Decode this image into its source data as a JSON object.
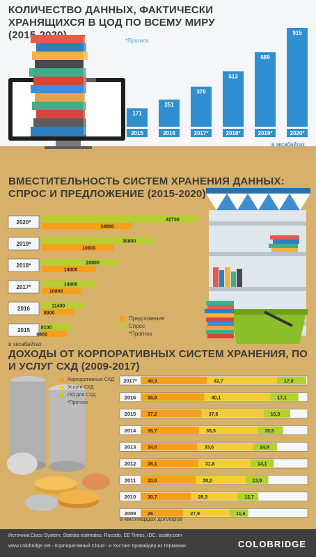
{
  "section1": {
    "title": "КОЛИЧЕСТВО ДАННЫХ, ФАКТИЧЕСКИ ХРАНЯЩИХСЯ В ЦОД ПО ВСЕМУ МИРУ (2015-2020)",
    "note": "*Прогноз",
    "unit": "в эксабайтах"
  },
  "section2": {
    "title": "ВМЕСТИТЕЛЬНОСТЬ СИСТЕМ ХРАНЕНИЯ ДАННЫХ: СПРОС И ПРЕДЛОЖЕНИЕ (2015-2020)",
    "legend": [
      "Предложение",
      "Спрос",
      "*Прогноз"
    ],
    "unit": "в эксабайтах"
  },
  "section3": {
    "title": "ДОХОДЫ ОТ КОРПОРАТИВНЫХ СИСТЕМ ХРАНЕНИЯ, ПО И УСЛУГ СХД (2009-2017)",
    "legend": [
      "Корпоративные СХД",
      "Услуги СХД",
      "ПО для СХД",
      "*Прогноз"
    ],
    "unit": "в миллиардах долларов"
  },
  "footer": {
    "source": "Источник:Cisco System, Statista estimates, Rocodo, EE Times, IDC, scality.com",
    "website": "www.colobridge.net - Корпоративный Cloud - и Хостинг провайдер из Германии",
    "logo": "COLOBRIDGE"
  },
  "colors": {
    "blue": "#2f8fd0",
    "orange": "#f6a01a",
    "green": "#b5cf2e",
    "yellow": "#f4cd34"
  },
  "chart_data": [
    {
      "type": "bar",
      "categories": [
        "2015",
        "2016",
        "2017*",
        "2018*",
        "2019*",
        "2020*"
      ],
      "values": [
        171,
        251,
        370,
        513,
        689,
        915
      ]
    },
    {
      "type": "bar",
      "orientation": "horizontal",
      "categories": [
        "2020*",
        "2019*",
        "2018*",
        "2017*",
        "2016",
        "2015"
      ],
      "series": [
        {
          "name": "Предложение",
          "values": [
            42700,
            30800,
            20800,
            14800,
            11400,
            8100
          ]
        },
        {
          "name": "Спрос",
          "values": [
            24800,
            19800,
            14800,
            10800,
            8900,
            6900
          ]
        }
      ]
    },
    {
      "type": "bar",
      "orientation": "horizontal",
      "stacked": true,
      "categories": [
        "2017*",
        "2016",
        "2015",
        "2014",
        "2013",
        "2012",
        "2011",
        "2010",
        "2009"
      ],
      "series": [
        {
          "name": "Корпоративные СХД",
          "values": [
            "40,3",
            "38,8",
            "37,2",
            "35,7",
            "34,6",
            "35,1",
            "33,6",
            "30,7",
            "26"
          ]
        },
        {
          "name": "Услуги СХД",
          "values": [
            "42,7",
            "40,1",
            "37,6",
            "35,5",
            "33,6",
            "31,8",
            "30,2",
            "28,3",
            "27,9"
          ]
        },
        {
          "name": "ПО для СХД",
          "values": [
            "17,8",
            "17,1",
            "16,3",
            "15,5",
            "14,8",
            "14,1",
            "13,9",
            "12,7",
            "11,6"
          ]
        }
      ]
    }
  ]
}
